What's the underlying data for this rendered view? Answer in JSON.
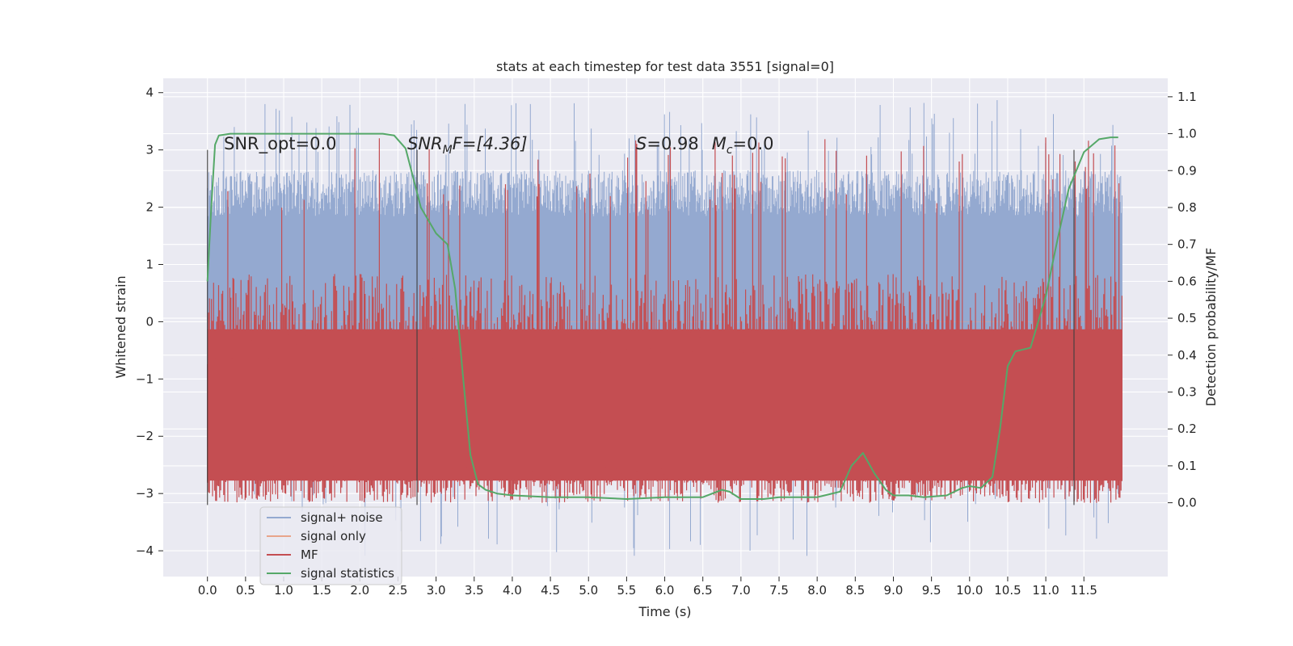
{
  "chart_data": {
    "type": "line",
    "title": "stats at each timestep for test data 3551 [signal=0]",
    "xlabel": "Time (s)",
    "ylabel_left": "Whitened strain",
    "ylabel_right": "Detection probability/MF",
    "x_ticks": [
      "0.0",
      "0.5",
      "1.0",
      "1.5",
      "2.0",
      "2.5",
      "3.0",
      "3.5",
      "4.0",
      "4.5",
      "5.0",
      "5.5",
      "6.0",
      "6.5",
      "7.0",
      "7.5",
      "8.0",
      "8.5",
      "9.0",
      "9.5",
      "10.0",
      "10.5",
      "11.0",
      "11.5"
    ],
    "y_left_ticks": [
      "4",
      "3",
      "2",
      "1",
      "0",
      "−1",
      "−2",
      "−3",
      "−4"
    ],
    "y_right_ticks": [
      "1.1",
      "1.0",
      "0.9",
      "0.8",
      "0.7",
      "0.6",
      "0.5",
      "0.4",
      "0.3",
      "0.2",
      "0.1",
      "0.0"
    ],
    "xlim": [
      -0.58,
      12.6
    ],
    "ylim_left": [
      -4.45,
      4.25
    ],
    "ylim_right": [
      -0.2,
      1.15
    ],
    "grid": true,
    "legend_position": "lower-left",
    "annotations": {
      "snr_opt": "SNR_opt=0.0",
      "snr_mf_main": "SNR",
      "snr_mf_sub": "M",
      "snr_mf_rest": "F=[4.36]",
      "s_label": "S",
      "s_value": "=0.98",
      "mc_main": "M",
      "mc_sub": "c",
      "mc_value": "=0.0"
    },
    "vertical_markers_x": [
      0.0,
      2.75,
      11.37
    ],
    "series": [
      {
        "name": "signal+ noise",
        "color": "#94a9d0",
        "kind": "noise",
        "x_range": [
          0.0,
          12.0
        ],
        "envelope_upper": 2.3,
        "envelope_lower": -2.4,
        "peak_max": 3.88,
        "peak_min": -4.1
      },
      {
        "name": "signal only",
        "color": "#e8a58a",
        "kind": "flat",
        "value": 0.0
      },
      {
        "name": "MF",
        "color": "#c44e52",
        "kind": "band",
        "x_range": [
          0.0,
          12.0
        ],
        "band_lower": 0.0,
        "band_upper": 0.62,
        "peak_max": 0.99
      },
      {
        "name": "signal statistics",
        "color": "#55a868",
        "kind": "line",
        "x": [
          0.0,
          0.05,
          0.1,
          0.15,
          0.3,
          2.3,
          2.45,
          2.6,
          2.8,
          3.0,
          3.15,
          3.25,
          3.35,
          3.45,
          3.55,
          3.65,
          3.8,
          4.0,
          4.5,
          5.0,
          5.5,
          6.0,
          6.5,
          6.75,
          6.85,
          7.0,
          7.3,
          7.5,
          8.0,
          8.3,
          8.45,
          8.6,
          8.75,
          8.9,
          9.0,
          9.2,
          9.4,
          9.7,
          9.9,
          10.0,
          10.15,
          10.3,
          10.4,
          10.5,
          10.6,
          10.8,
          11.0,
          11.15,
          11.3,
          11.5,
          11.7,
          11.85,
          11.95
        ],
        "y": [
          0.6,
          0.8,
          0.97,
          0.995,
          1.0,
          1.0,
          0.995,
          0.96,
          0.8,
          0.73,
          0.7,
          0.58,
          0.35,
          0.13,
          0.05,
          0.035,
          0.025,
          0.02,
          0.015,
          0.015,
          0.01,
          0.015,
          0.015,
          0.035,
          0.03,
          0.01,
          0.01,
          0.015,
          0.015,
          0.03,
          0.1,
          0.135,
          0.08,
          0.035,
          0.02,
          0.02,
          0.015,
          0.02,
          0.04,
          0.045,
          0.04,
          0.07,
          0.2,
          0.37,
          0.41,
          0.42,
          0.56,
          0.71,
          0.85,
          0.95,
          0.985,
          0.99,
          0.99
        ]
      }
    ]
  }
}
